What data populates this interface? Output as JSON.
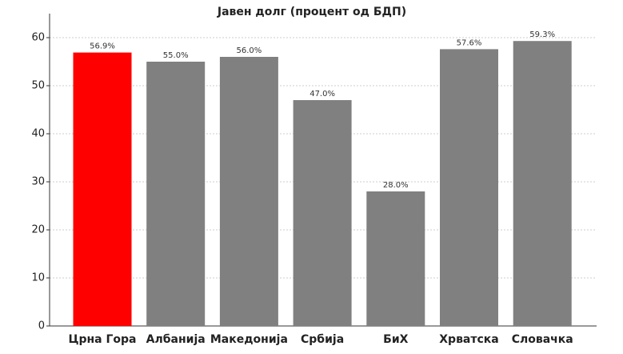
{
  "chart_data": {
    "type": "bar",
    "title": "Јавен долг (процент од БДП)",
    "categories": [
      "Црна Гора",
      "Албанија",
      "Македонија",
      "Србија",
      "БиХ",
      "Хрватска",
      "Словачка"
    ],
    "values": [
      56.9,
      55.0,
      56.0,
      47.0,
      28.0,
      57.6,
      59.3
    ],
    "value_labels": [
      "56.9%",
      "55.0%",
      "56.0%",
      "47.0%",
      "28.0%",
      "57.6%",
      "59.3%"
    ],
    "colors": [
      "#ff0000",
      "#808080",
      "#808080",
      "#808080",
      "#808080",
      "#808080",
      "#808080"
    ],
    "ylim": [
      0,
      65
    ],
    "yticks": [
      0,
      10,
      20,
      30,
      40,
      50,
      60
    ],
    "grid": true
  }
}
